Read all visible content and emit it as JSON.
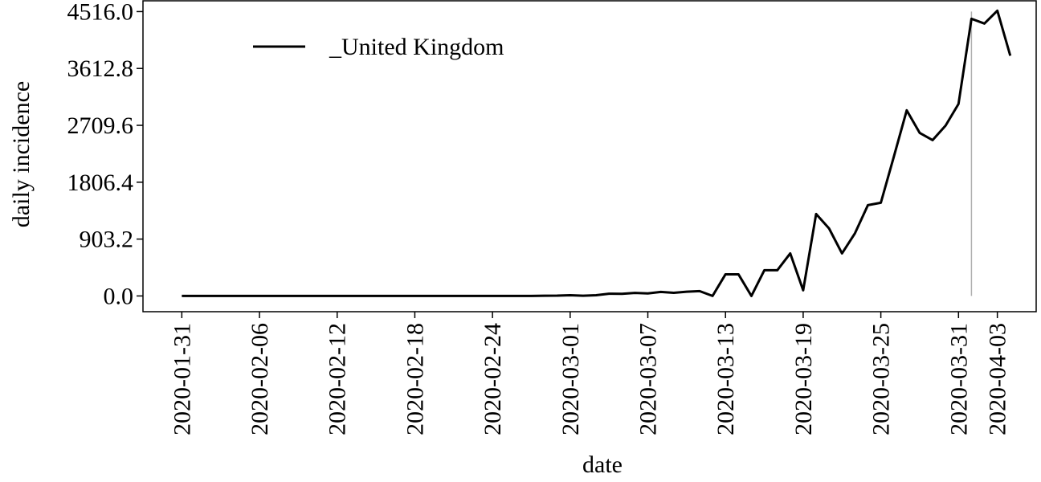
{
  "chart_data": {
    "type": "line",
    "x_label": "date",
    "y_label": "daily incidence",
    "x": [
      "2020-01-31",
      "2020-02-01",
      "2020-02-02",
      "2020-02-03",
      "2020-02-04",
      "2020-02-05",
      "2020-02-06",
      "2020-02-07",
      "2020-02-08",
      "2020-02-09",
      "2020-02-10",
      "2020-02-11",
      "2020-02-12",
      "2020-02-13",
      "2020-02-14",
      "2020-02-15",
      "2020-02-16",
      "2020-02-17",
      "2020-02-18",
      "2020-02-19",
      "2020-02-20",
      "2020-02-21",
      "2020-02-22",
      "2020-02-23",
      "2020-02-24",
      "2020-02-25",
      "2020-02-26",
      "2020-02-27",
      "2020-02-28",
      "2020-02-29",
      "2020-03-01",
      "2020-03-02",
      "2020-03-03",
      "2020-03-04",
      "2020-03-05",
      "2020-03-06",
      "2020-03-07",
      "2020-03-08",
      "2020-03-09",
      "2020-03-10",
      "2020-03-11",
      "2020-03-12",
      "2020-03-13",
      "2020-03-14",
      "2020-03-15",
      "2020-03-16",
      "2020-03-17",
      "2020-03-18",
      "2020-03-19",
      "2020-03-20",
      "2020-03-21",
      "2020-03-22",
      "2020-03-23",
      "2020-03-24",
      "2020-03-25",
      "2020-03-26",
      "2020-03-27",
      "2020-03-28",
      "2020-03-29",
      "2020-03-30",
      "2020-03-31",
      "2020-04-01",
      "2020-04-02",
      "2020-04-03",
      "2020-04-04"
    ],
    "series": [
      {
        "name": "_United Kingdom",
        "color": "#000000",
        "values": [
          0,
          0,
          0,
          0,
          0,
          0,
          0,
          0,
          0,
          0,
          0,
          0,
          0,
          0,
          0,
          0,
          0,
          0,
          0,
          0,
          0,
          0,
          0,
          0,
          0,
          0,
          0,
          0,
          3,
          5,
          12,
          4,
          12,
          35,
          34,
          48,
          40,
          64,
          50,
          67,
          77,
          0,
          344,
          344,
          0,
          408,
          408,
          676,
          90,
          1302,
          1072,
          676,
          995,
          1442,
          1480,
          2208,
          2948,
          2590,
          2475,
          2705,
          3050,
          4402,
          4326,
          4530,
          3815
        ]
      }
    ],
    "vline": "2020-04-01",
    "vline_color": "#b0b0b0",
    "xlim": [
      "2020-01-28",
      "2020-04-06"
    ],
    "xticks": [
      "2020-01-31",
      "2020-02-06",
      "2020-02-12",
      "2020-02-18",
      "2020-02-24",
      "2020-03-01",
      "2020-03-07",
      "2020-03-13",
      "2020-03-19",
      "2020-03-25",
      "2020-03-31",
      "2020-04-03"
    ],
    "ylim": [
      -250,
      4700
    ],
    "yticks": [
      {
        "value": 0,
        "label": "0.0"
      },
      903.2,
      1806.4,
      2709.6,
      3612.8,
      {
        "value": 4516,
        "label": "4516.0"
      }
    ],
    "legend": "upper left"
  }
}
